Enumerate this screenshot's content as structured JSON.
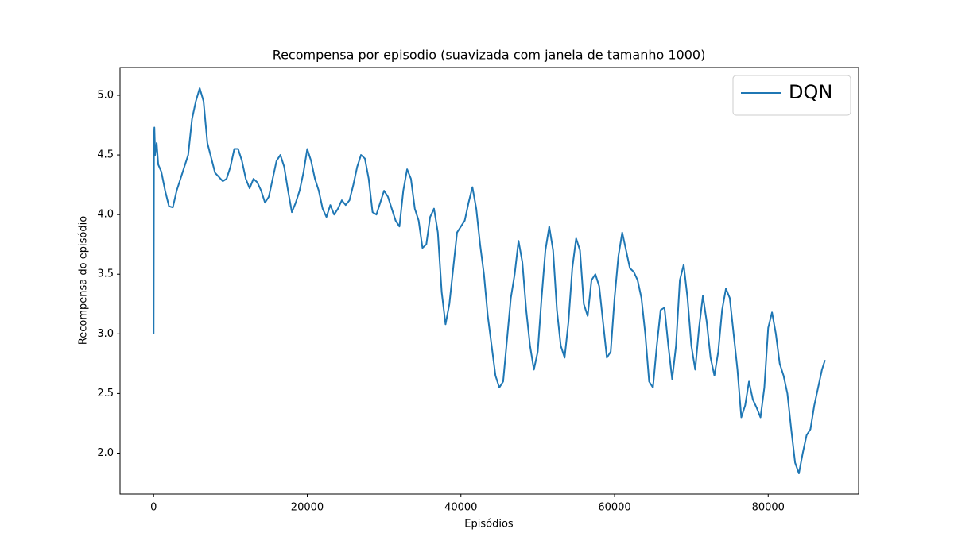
{
  "chart_data": {
    "type": "line",
    "title": "Recompensa por episodio (suavizada com janela de tamanho 1000)",
    "x_label": "Episódios",
    "y_label": "Recompensa do episódio",
    "x": [
      0,
      50,
      100,
      200,
      400,
      600,
      1000,
      1500,
      2000,
      2500,
      3000,
      4000,
      4500,
      5000,
      5500,
      6000,
      6500,
      7000,
      8000,
      9000,
      9500,
      10000,
      10500,
      11000,
      11500,
      12000,
      12500,
      13000,
      13500,
      14000,
      14500,
      15000,
      15500,
      16000,
      16500,
      17000,
      17500,
      18000,
      18500,
      19000,
      19500,
      20000,
      20500,
      21000,
      21500,
      22000,
      22500,
      23000,
      23500,
      24000,
      24500,
      25000,
      25500,
      26000,
      26500,
      27000,
      27500,
      28000,
      28500,
      29000,
      29500,
      30000,
      30500,
      31000,
      31500,
      32000,
      32500,
      33000,
      33500,
      34000,
      34500,
      35000,
      35500,
      36000,
      36500,
      37000,
      37500,
      38000,
      38500,
      39000,
      39500,
      40000,
      40500,
      41000,
      41500,
      42000,
      42500,
      43000,
      43500,
      44000,
      44500,
      45000,
      45500,
      46000,
      46500,
      47000,
      47500,
      48000,
      48500,
      49000,
      49500,
      50000,
      50500,
      51000,
      51500,
      52000,
      52500,
      53000,
      53500,
      54000,
      54500,
      55000,
      55500,
      56000,
      56500,
      57000,
      57500,
      58000,
      58500,
      59000,
      59500,
      60000,
      60500,
      61000,
      61500,
      62000,
      62500,
      63000,
      63500,
      64000,
      64500,
      65000,
      65500,
      66000,
      66500,
      67000,
      67500,
      68000,
      68500,
      69000,
      69500,
      70000,
      70500,
      71000,
      71500,
      72000,
      72500,
      73000,
      73500,
      74000,
      74500,
      75000,
      75500,
      76000,
      76500,
      77000,
      77500,
      78000,
      78500,
      79000,
      79500,
      80000,
      80500,
      81000,
      81500,
      82000,
      82500,
      83000,
      83500,
      84000,
      84500,
      85000,
      85500,
      86000,
      86500,
      87000,
      87400
    ],
    "series": [
      {
        "name": "DQN",
        "color": "#1f77b4",
        "values": [
          3.0,
          4.65,
          4.73,
          4.5,
          4.6,
          4.42,
          4.36,
          4.2,
          4.07,
          4.06,
          4.2,
          4.4,
          4.5,
          4.8,
          4.95,
          5.06,
          4.95,
          4.6,
          4.35,
          4.28,
          4.3,
          4.4,
          4.55,
          4.55,
          4.45,
          4.3,
          4.22,
          4.3,
          4.27,
          4.2,
          4.1,
          4.15,
          4.3,
          4.45,
          4.5,
          4.4,
          4.2,
          4.02,
          4.1,
          4.2,
          4.35,
          4.55,
          4.45,
          4.3,
          4.2,
          4.05,
          3.98,
          4.08,
          4.0,
          4.05,
          4.12,
          4.08,
          4.12,
          4.25,
          4.4,
          4.5,
          4.47,
          4.3,
          4.02,
          4.0,
          4.1,
          4.2,
          4.15,
          4.05,
          3.95,
          3.9,
          4.2,
          4.38,
          4.3,
          4.05,
          3.95,
          3.72,
          3.75,
          3.98,
          4.05,
          3.85,
          3.35,
          3.08,
          3.25,
          3.55,
          3.85,
          3.9,
          3.95,
          4.1,
          4.23,
          4.05,
          3.75,
          3.5,
          3.15,
          2.9,
          2.65,
          2.55,
          2.6,
          2.95,
          3.3,
          3.5,
          3.78,
          3.6,
          3.2,
          2.9,
          2.7,
          2.85,
          3.3,
          3.7,
          3.9,
          3.7,
          3.2,
          2.9,
          2.8,
          3.1,
          3.55,
          3.8,
          3.7,
          3.25,
          3.15,
          3.45,
          3.5,
          3.4,
          3.1,
          2.8,
          2.85,
          3.3,
          3.65,
          3.85,
          3.7,
          3.55,
          3.52,
          3.45,
          3.3,
          3.0,
          2.6,
          2.55,
          2.9,
          3.2,
          3.22,
          2.9,
          2.62,
          2.9,
          3.45,
          3.58,
          3.3,
          2.9,
          2.7,
          3.05,
          3.32,
          3.1,
          2.8,
          2.65,
          2.85,
          3.2,
          3.38,
          3.3,
          3.0,
          2.7,
          2.3,
          2.4,
          2.6,
          2.45,
          2.38,
          2.3,
          2.55,
          3.05,
          3.18,
          3.0,
          2.75,
          2.65,
          2.5,
          2.2,
          1.92,
          1.83,
          2.0,
          2.15,
          2.2,
          2.4,
          2.55,
          2.7,
          2.78
        ]
      }
    ],
    "xlim": [
      -4370,
      91770
    ],
    "ylim": [
      1.657,
      5.233
    ],
    "xticks": [
      0,
      20000,
      40000,
      60000,
      80000
    ],
    "yticks": [
      {
        "value": 2,
        "label": "2.0"
      },
      {
        "value": 2.5,
        "label": "2.5"
      },
      {
        "value": 3,
        "label": "3.0"
      },
      {
        "value": 3.5,
        "label": "3.5"
      },
      {
        "value": 4,
        "label": "4.0"
      },
      {
        "value": 4.5,
        "label": "4.5"
      },
      {
        "value": 5,
        "label": "5.0"
      }
    ],
    "grid": false,
    "legend_position": "upper-right"
  }
}
